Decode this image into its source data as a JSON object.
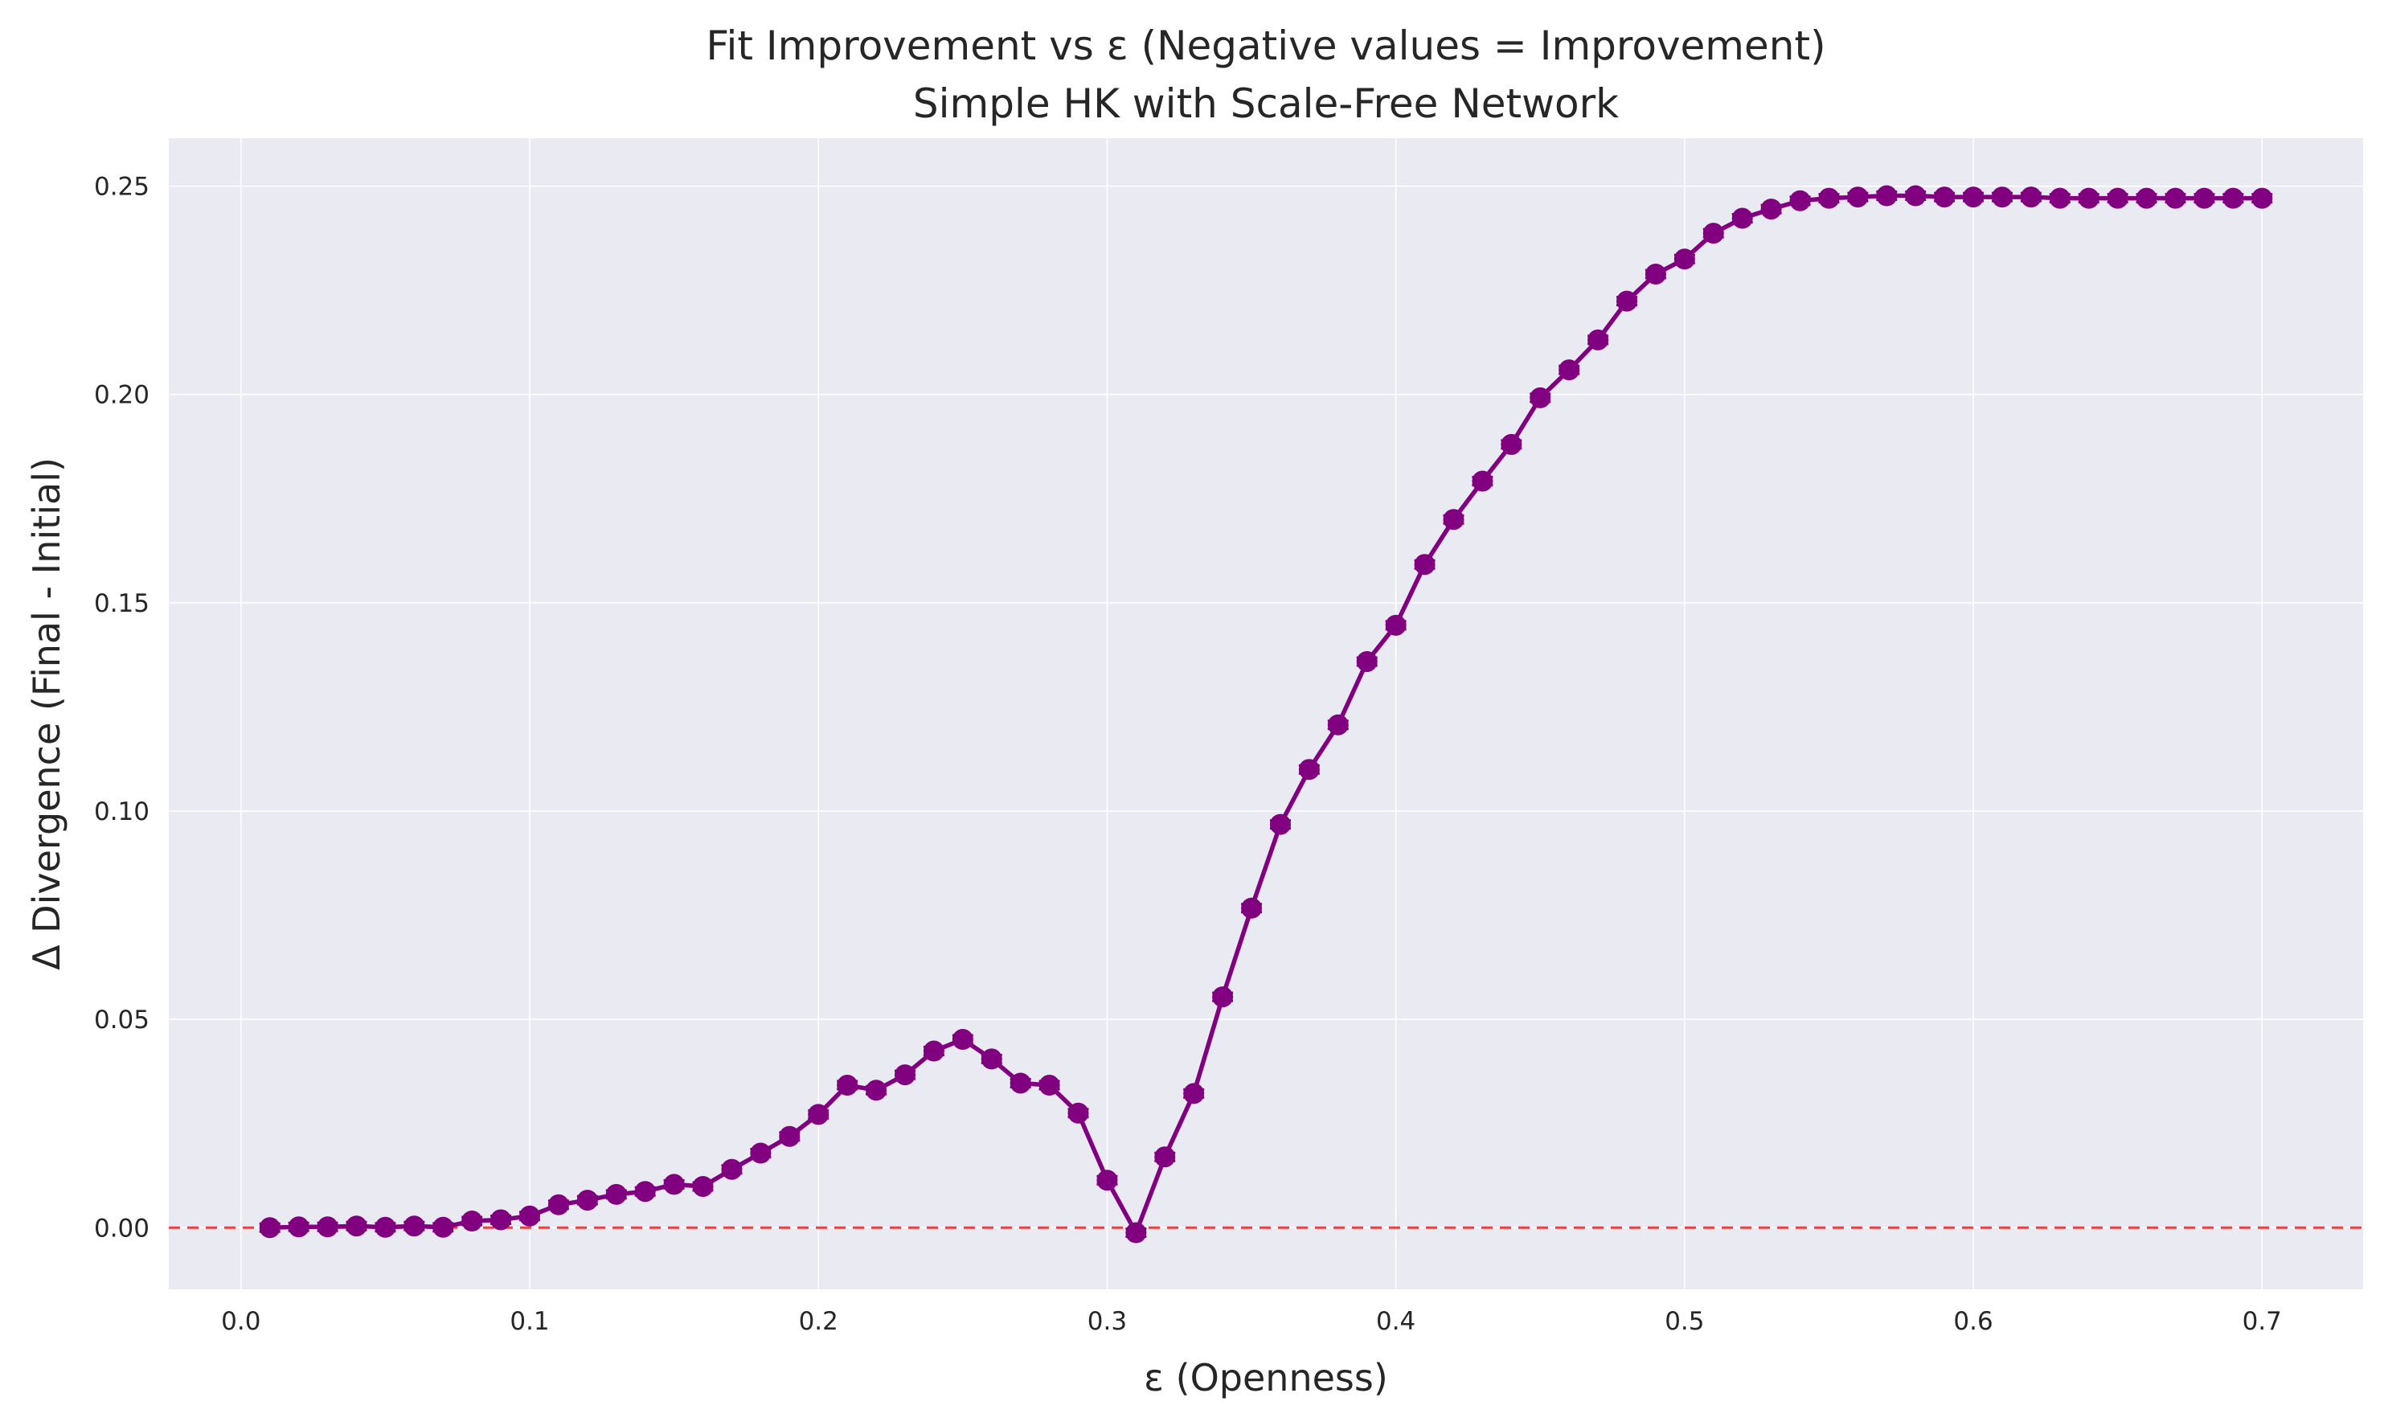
{
  "chart_data": {
    "type": "line",
    "title": "Fit Improvement vs ε (Negative values = Improvement)",
    "subtitle": "Simple HK with Scale-Free Network",
    "xlabel": "ε (Openness)",
    "ylabel": "Δ Divergence (Final - Initial)",
    "xlim": [
      -0.025,
      0.735
    ],
    "ylim": [
      -0.0148,
      0.2615
    ],
    "xticks": [
      0.0,
      0.1,
      0.2,
      0.3,
      0.4,
      0.5,
      0.6,
      0.7
    ],
    "xtick_labels": [
      "0.0",
      "0.1",
      "0.2",
      "0.3",
      "0.4",
      "0.5",
      "0.6",
      "0.7"
    ],
    "yticks": [
      0.0,
      0.05,
      0.1,
      0.15,
      0.2,
      0.25
    ],
    "ytick_labels": [
      "0.00",
      "0.05",
      "0.10",
      "0.15",
      "0.20",
      "0.25"
    ],
    "grid": true,
    "reference_line": {
      "y": 0.0,
      "style": "dashed",
      "color": "#e8413f"
    },
    "colors": {
      "series": "#800080",
      "background": "#eaeaf2",
      "grid": "#ffffff"
    },
    "series": [
      {
        "x": [
          0.01,
          0.02,
          0.03,
          0.04,
          0.05,
          0.06,
          0.07,
          0.08,
          0.09,
          0.1,
          0.11,
          0.12,
          0.13,
          0.14,
          0.15,
          0.16,
          0.17,
          0.18,
          0.19,
          0.2,
          0.21,
          0.22,
          0.23,
          0.24,
          0.25,
          0.26,
          0.27,
          0.28,
          0.29,
          0.3,
          0.31,
          0.32,
          0.33,
          0.34,
          0.35,
          0.36,
          0.37,
          0.38,
          0.39,
          0.4,
          0.41,
          0.42,
          0.43,
          0.44,
          0.45,
          0.46,
          0.47,
          0.48,
          0.49,
          0.5,
          0.51,
          0.52,
          0.53,
          0.54,
          0.55,
          0.56,
          0.57,
          0.58,
          0.59,
          0.6,
          0.61,
          0.62,
          0.63,
          0.64,
          0.65,
          0.66,
          0.67,
          0.68,
          0.69,
          0.7
        ],
        "y": [
          0.0,
          0.0002,
          0.0002,
          0.0004,
          0.0001,
          0.0004,
          0.0001,
          0.0016,
          0.0019,
          0.0028,
          0.0055,
          0.0066,
          0.008,
          0.0087,
          0.0104,
          0.0099,
          0.014,
          0.0179,
          0.0219,
          0.0272,
          0.0342,
          0.033,
          0.0367,
          0.0424,
          0.0452,
          0.0405,
          0.0347,
          0.0342,
          0.0275,
          0.0114,
          -0.0012,
          0.017,
          0.0322,
          0.0554,
          0.0767,
          0.0968,
          0.11,
          0.1207,
          0.1359,
          0.1446,
          0.1592,
          0.17,
          0.1792,
          0.188,
          0.1992,
          0.2059,
          0.2131,
          0.2224,
          0.2289,
          0.2325,
          0.2387,
          0.2423,
          0.2445,
          0.2465,
          0.2471,
          0.2474,
          0.2477,
          0.2477,
          0.2474,
          0.2474,
          0.2474,
          0.2474,
          0.2471,
          0.2471,
          0.2471,
          0.2471,
          0.2471,
          0.2471,
          0.2471,
          0.2471
        ]
      }
    ]
  }
}
